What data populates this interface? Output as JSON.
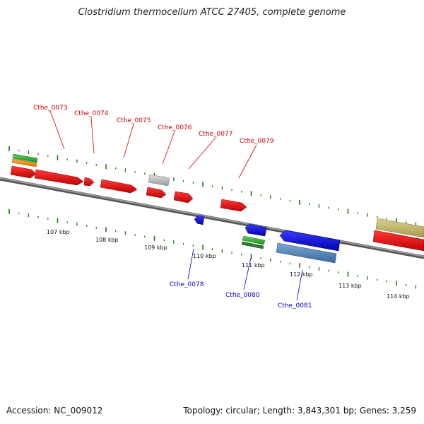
{
  "title": "Clostridium thermocellum ATCC 27405, complete genome",
  "accession": "Accession: NC_009012",
  "summary": "Topology: circular; Length: 3,843,301 bp; Genes: 3,259",
  "colors": {
    "forward_label": "#cc0000",
    "reverse_label": "#0000cc",
    "tick": "#1a7a1a",
    "backbone": "#888888"
  },
  "scale_labels": [
    "107 kbp",
    "108 kbp",
    "109 kbp",
    "110 kbp",
    "111 kbp",
    "112 kbp",
    "113 kbp",
    "114 kbp"
  ],
  "forward_labels": [
    "Cthe_0073",
    "Cthe_0074",
    "Cthe_0075",
    "Cthe_0076",
    "Cthe_0077",
    "Cthe_0079"
  ],
  "reverse_labels": [
    "Cthe_0078",
    "Cthe_0080",
    "Cthe_0081"
  ]
}
